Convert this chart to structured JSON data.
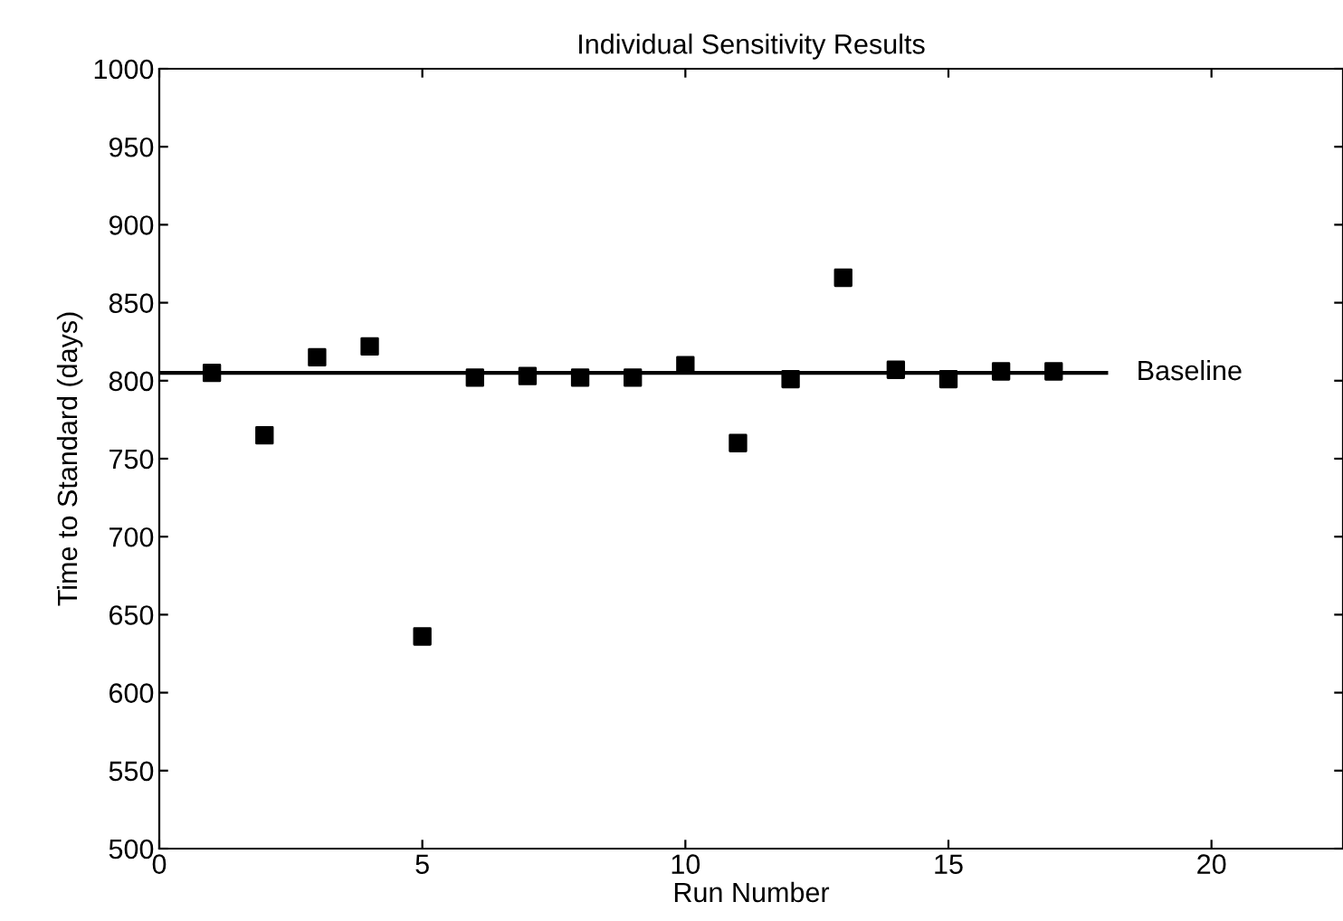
{
  "chart_data": {
    "type": "scatter",
    "title": "Individual Sensitivity Results",
    "xlabel": "Run Number",
    "ylabel": "Time to Standard (days)",
    "xlim": [
      0,
      22.5
    ],
    "xticks": [
      0,
      5,
      10,
      15,
      20
    ],
    "ylim": [
      500,
      1000
    ],
    "yticks": [
      500,
      550,
      600,
      650,
      700,
      750,
      800,
      850,
      900,
      950,
      1000
    ],
    "grid": false,
    "legend": false,
    "series": [
      {
        "marker": "square",
        "color": "#000000",
        "x": [
          1,
          2,
          3,
          4,
          5,
          6,
          7,
          8,
          9,
          10,
          11,
          12,
          13,
          14,
          15,
          16,
          17
        ],
        "values": [
          805,
          765,
          815,
          822,
          636,
          802,
          803,
          802,
          802,
          810,
          760,
          801,
          866,
          807,
          801,
          806,
          806
        ]
      },
      {
        "type": "line",
        "name": "Baseline",
        "color": "#000000",
        "line_style": "solid",
        "x": [
          0,
          18
        ],
        "values": [
          805,
          805
        ]
      }
    ]
  }
}
